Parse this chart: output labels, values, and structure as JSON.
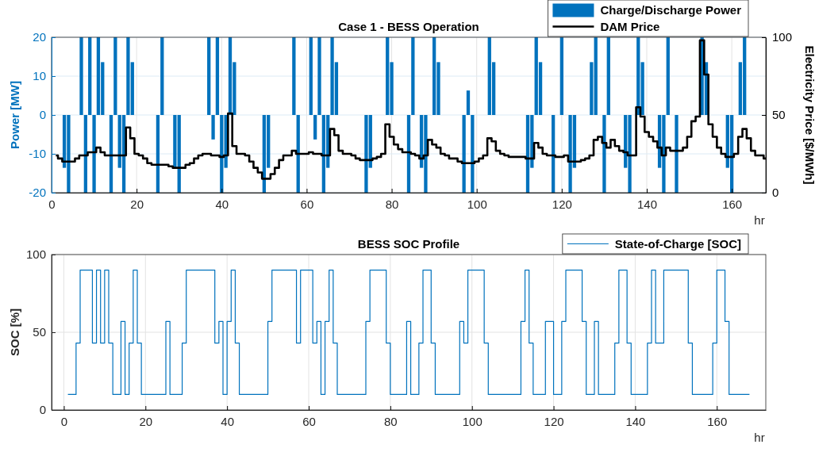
{
  "chart_data": [
    {
      "type": "bar",
      "title": "Case 1 - BESS Operation",
      "xlabel": "hr",
      "ylabel": "Power [MW]",
      "y2label": "Electricity Price [$/MWh]",
      "x": [
        1,
        2,
        3,
        4,
        5,
        6,
        7,
        8,
        9,
        10,
        11,
        12,
        13,
        14,
        15,
        16,
        17,
        18,
        19,
        20,
        21,
        22,
        23,
        24,
        25,
        26,
        27,
        28,
        29,
        30,
        31,
        32,
        33,
        34,
        35,
        36,
        37,
        38,
        39,
        40,
        41,
        42,
        43,
        44,
        45,
        46,
        47,
        48,
        49,
        50,
        51,
        52,
        53,
        54,
        55,
        56,
        57,
        58,
        59,
        60,
        61,
        62,
        63,
        64,
        65,
        66,
        67,
        68,
        69,
        70,
        71,
        72,
        73,
        74,
        75,
        76,
        77,
        78,
        79,
        80,
        81,
        82,
        83,
        84,
        85,
        86,
        87,
        88,
        89,
        90,
        91,
        92,
        93,
        94,
        95,
        96,
        97,
        98,
        99,
        100,
        101,
        102,
        103,
        104,
        105,
        106,
        107,
        108,
        109,
        110,
        111,
        112,
        113,
        114,
        115,
        116,
        117,
        118,
        119,
        120,
        121,
        122,
        123,
        124,
        125,
        126,
        127,
        128,
        129,
        130,
        131,
        132,
        133,
        134,
        135,
        136,
        137,
        138,
        139,
        140,
        141,
        142,
        143,
        144,
        145,
        146,
        147,
        148,
        149,
        150,
        151,
        152,
        153,
        154,
        155,
        156,
        157,
        158,
        159,
        160,
        161,
        162,
        163,
        164,
        165,
        166,
        167,
        168
      ],
      "series": [
        {
          "name": "Charge/Discharge Power",
          "color": "#0072bd",
          "values": [
            0,
            0,
            -13.6,
            -20,
            0,
            0,
            20,
            -20,
            20,
            -20,
            20,
            13.6,
            0,
            -20,
            20,
            -13.6,
            -20,
            20,
            13.6,
            0,
            0,
            0,
            0,
            0,
            -20,
            20,
            0,
            0,
            -13.6,
            -20,
            0,
            0,
            0,
            0,
            0,
            0,
            20,
            -6.3,
            20,
            -20,
            -13.6,
            20,
            13.6,
            0,
            0,
            0,
            0,
            0,
            0,
            -20,
            -13.6,
            0,
            0,
            0,
            0,
            0,
            20,
            -20,
            0,
            0,
            20,
            -6.3,
            20,
            -20,
            -13.6,
            20,
            13.6,
            0,
            0,
            0,
            0,
            0,
            0,
            -20,
            -13.6,
            0,
            0,
            0,
            20,
            13.6,
            0,
            0,
            0,
            -20,
            20,
            0,
            -13.6,
            -20,
            0,
            20,
            13.6,
            0,
            0,
            0,
            0,
            0,
            -20,
            6.3,
            -20,
            0,
            0,
            0,
            20,
            13.6,
            0,
            0,
            0,
            0,
            0,
            0,
            0,
            -20,
            -13.6,
            20,
            13.6,
            0,
            0,
            -20,
            0,
            20,
            0,
            -20,
            -13.6,
            0,
            0,
            0,
            13.6,
            20,
            0,
            -20,
            20,
            0,
            0,
            0,
            -13.6,
            -20,
            0,
            20,
            13.6,
            0,
            0,
            0,
            -13.6,
            -20,
            20,
            0,
            -20,
            0,
            0,
            0,
            0,
            0,
            20,
            13.6,
            0,
            0,
            0,
            0,
            -13.6,
            -20,
            0,
            13.6,
            20,
            0,
            0,
            0,
            0,
            0
          ]
        },
        {
          "name": "DAM Price",
          "type": "step",
          "axis": "y2",
          "color": "#000000",
          "values": [
            24,
            22,
            20,
            20,
            20,
            22,
            24,
            24,
            26,
            26,
            29,
            26,
            24,
            24,
            24,
            24,
            24,
            42,
            35,
            25,
            24,
            22,
            19,
            18,
            18,
            18,
            18,
            17,
            16,
            16,
            16,
            18,
            19,
            22,
            24,
            25,
            25,
            24,
            24,
            23,
            24,
            51,
            30,
            25,
            25,
            24,
            20,
            16,
            13,
            9,
            9,
            12,
            16,
            21,
            24,
            24,
            27,
            25,
            25,
            25,
            26,
            25,
            25,
            24,
            24,
            41,
            37,
            27,
            25,
            25,
            24,
            22,
            21,
            21,
            21,
            22,
            23,
            25,
            44,
            36,
            31,
            28,
            26,
            26,
            25,
            24,
            22,
            24,
            34,
            31,
            29,
            25,
            24,
            22,
            22,
            20,
            19,
            19,
            19,
            20,
            22,
            24,
            35,
            33,
            27,
            25,
            24,
            23,
            23,
            23,
            23,
            22,
            22,
            32,
            29,
            25,
            24,
            24,
            23,
            23,
            24,
            20,
            20,
            20,
            21,
            22,
            24,
            34,
            36,
            32,
            29,
            34,
            30,
            27,
            26,
            24,
            24,
            55,
            49,
            39,
            36,
            33,
            29,
            24,
            29,
            27,
            27,
            27,
            29,
            36,
            46,
            49,
            98,
            76,
            44,
            36,
            29,
            25,
            23,
            23,
            25,
            36,
            41,
            35,
            27,
            24,
            24,
            22
          ]
        }
      ],
      "xlim": [
        0,
        168
      ],
      "xticks": [
        0,
        20,
        40,
        60,
        80,
        100,
        120,
        140,
        160
      ],
      "ylim": [
        -20,
        20
      ],
      "yticks": [
        -20,
        -10,
        0,
        10,
        20
      ],
      "y2lim": [
        0,
        100
      ],
      "y2ticks": [
        0,
        50,
        100
      ],
      "grid": true,
      "legend": "top right"
    },
    {
      "type": "step",
      "title": "BESS SOC Profile",
      "xlabel": "hr",
      "ylabel": "SOC [%]",
      "x": [
        1,
        2,
        3,
        4,
        5,
        6,
        7,
        8,
        9,
        10,
        11,
        12,
        13,
        14,
        15,
        16,
        17,
        18,
        19,
        20,
        21,
        22,
        23,
        24,
        25,
        26,
        27,
        28,
        29,
        30,
        31,
        32,
        33,
        34,
        35,
        36,
        37,
        38,
        39,
        40,
        41,
        42,
        43,
        44,
        45,
        46,
        47,
        48,
        49,
        50,
        51,
        52,
        53,
        54,
        55,
        56,
        57,
        58,
        59,
        60,
        61,
        62,
        63,
        64,
        65,
        66,
        67,
        68,
        69,
        70,
        71,
        72,
        73,
        74,
        75,
        76,
        77,
        78,
        79,
        80,
        81,
        82,
        83,
        84,
        85,
        86,
        87,
        88,
        89,
        90,
        91,
        92,
        93,
        94,
        95,
        96,
        97,
        98,
        99,
        100,
        101,
        102,
        103,
        104,
        105,
        106,
        107,
        108,
        109,
        110,
        111,
        112,
        113,
        114,
        115,
        116,
        117,
        118,
        119,
        120,
        121,
        122,
        123,
        124,
        125,
        126,
        127,
        128,
        129,
        130,
        131,
        132,
        133,
        134,
        135,
        136,
        137,
        138,
        139,
        140,
        141,
        142,
        143,
        144,
        145,
        146,
        147,
        148,
        149,
        150,
        151,
        152,
        153,
        154,
        155,
        156,
        157,
        158,
        159,
        160,
        161,
        162,
        163,
        164,
        165,
        166,
        167,
        168
      ],
      "series": [
        {
          "name": "State-of-Charge [SOC]",
          "color": "#0072bd",
          "values": [
            10,
            10,
            43,
            90,
            90,
            90,
            43,
            90,
            43,
            90,
            43,
            10,
            10,
            57,
            10,
            43,
            90,
            43,
            10,
            10,
            10,
            10,
            10,
            10,
            57,
            10,
            10,
            10,
            43,
            90,
            90,
            90,
            90,
            90,
            90,
            90,
            43,
            57,
            10,
            57,
            90,
            43,
            10,
            10,
            10,
            10,
            10,
            10,
            10,
            57,
            90,
            90,
            90,
            90,
            90,
            90,
            43,
            90,
            90,
            90,
            43,
            57,
            10,
            57,
            90,
            43,
            10,
            10,
            10,
            10,
            10,
            10,
            10,
            57,
            90,
            90,
            90,
            90,
            43,
            10,
            10,
            10,
            10,
            57,
            10,
            10,
            43,
            90,
            90,
            43,
            10,
            10,
            10,
            10,
            10,
            10,
            57,
            43,
            90,
            90,
            90,
            90,
            43,
            10,
            10,
            10,
            10,
            10,
            10,
            10,
            10,
            57,
            90,
            43,
            10,
            10,
            10,
            57,
            57,
            10,
            10,
            57,
            90,
            90,
            90,
            90,
            57,
            10,
            10,
            57,
            10,
            10,
            10,
            10,
            43,
            90,
            90,
            43,
            10,
            10,
            10,
            10,
            43,
            90,
            43,
            43,
            90,
            90,
            90,
            90,
            90,
            90,
            43,
            10,
            10,
            10,
            10,
            10,
            43,
            90,
            90,
            57,
            10,
            10,
            10,
            10,
            10,
            10
          ]
        }
      ],
      "xlim": [
        -3,
        172
      ],
      "xticks": [
        0,
        20,
        40,
        60,
        80,
        100,
        120,
        140,
        160
      ],
      "ylim": [
        0,
        100
      ],
      "yticks": [
        0,
        50,
        100
      ],
      "grid": true,
      "legend": "top right"
    }
  ]
}
